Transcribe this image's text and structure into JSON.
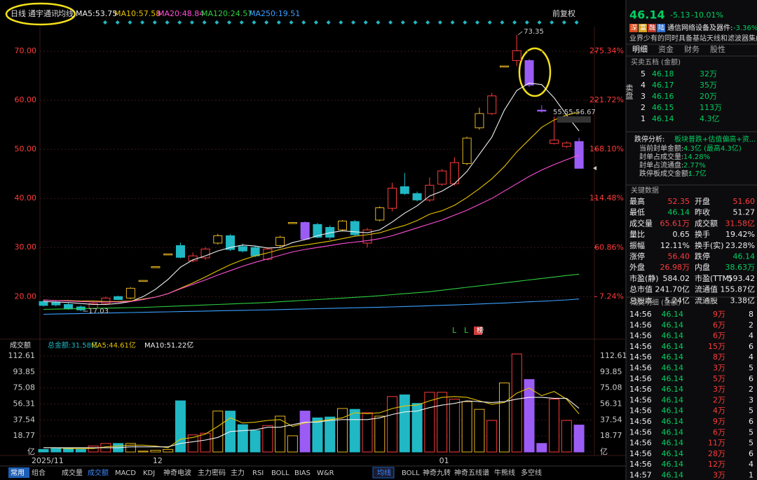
{
  "toolbar": {
    "period": "日线",
    "stock": "通宇通讯",
    "indicator": "均线",
    "adjust": "前复权"
  },
  "chart_data": [
    {
      "type": "candlestick",
      "categories": [
        "2025/11",
        null,
        null,
        null,
        null,
        null,
        null,
        null,
        null,
        "12",
        null,
        null,
        null,
        null,
        null,
        null,
        null,
        null,
        null,
        null,
        null,
        null,
        null,
        null,
        null,
        null,
        null,
        null,
        null,
        null,
        null,
        null,
        "01",
        null,
        null,
        null,
        null,
        null,
        null,
        null,
        null,
        null,
        null,
        null
      ],
      "open": [
        19.0,
        18.9,
        18.4,
        17.9,
        17.6,
        18.6,
        20.0,
        19.7,
        23.3,
        26.1,
        28.7,
        30.4,
        27.3,
        27.9,
        30.9,
        32.4,
        30.2,
        30.0,
        27.6,
        30.4,
        35.1,
        35.1,
        34.7,
        34.1,
        33.6,
        35.3,
        30.9,
        35.6,
        38.0,
        42.4,
        41.0,
        39.7,
        42.9,
        43.0,
        47.1,
        54.4,
        57.3,
        67.0,
        68.1,
        68.1,
        58.0,
        51.2,
        50.6,
        51.6
      ],
      "high": [
        19.3,
        19.1,
        18.7,
        18.2,
        18.9,
        20.0,
        20.2,
        21.9,
        23.3,
        26.1,
        28.7,
        31.0,
        29.0,
        30.1,
        32.8,
        32.7,
        30.8,
        30.3,
        30.0,
        32.4,
        35.1,
        35.3,
        35.0,
        34.5,
        35.6,
        35.6,
        34.0,
        38.4,
        43.2,
        45.2,
        41.4,
        44.3,
        46.0,
        48.4,
        52.6,
        58.5,
        61.5,
        67.0,
        73.35,
        68.4,
        59.0,
        56.67,
        51.6,
        52.35
      ],
      "low": [
        18.0,
        18.0,
        17.3,
        17.03,
        17.4,
        18.4,
        19.3,
        19.5,
        23.3,
        26.1,
        28.7,
        27.8,
        27.0,
        27.5,
        30.6,
        29.3,
        29.0,
        28.0,
        27.4,
        30.1,
        35.1,
        31.5,
        31.9,
        31.6,
        33.3,
        32.3,
        30.0,
        35.3,
        37.4,
        40.7,
        39.4,
        39.3,
        42.6,
        42.6,
        46.8,
        54.0,
        57.0,
        67.0,
        67.0,
        62.7,
        57.5,
        51.0,
        50.3,
        46.14
      ],
      "close": [
        18.2,
        18.3,
        17.5,
        17.3,
        18.6,
        19.7,
        19.4,
        21.7,
        23.3,
        26.1,
        28.7,
        28.0,
        28.3,
        29.7,
        32.4,
        29.6,
        29.3,
        28.3,
        29.7,
        32.1,
        35.1,
        31.7,
        32.1,
        32.1,
        35.4,
        32.6,
        33.6,
        38.1,
        42.1,
        41.0,
        39.7,
        42.7,
        45.6,
        47.3,
        52.3,
        57.3,
        60.9,
        67.0,
        70.1,
        63.1,
        57.8,
        51.9,
        51.3,
        46.14
      ],
      "candle_colors": [
        "#20b8c4",
        "#20b8c4",
        "#20b8c4",
        "#20b8c4",
        "#ff3b3b",
        "#ff3b3b",
        "#20b8c4",
        "#e6b422",
        "#e6b422",
        "#e6b422",
        "#e6b422",
        "#20b8c4",
        "#ff3b3b",
        "#ff3b3b",
        "#e6b422",
        "#20b8c4",
        "#20b8c4",
        "#20b8c4",
        "#ff3b3b",
        "#e6b422",
        "#e6b422",
        "#9b5cf6",
        "#20b8c4",
        "#20b8c4",
        "#e6b422",
        "#20b8c4",
        "#ff3b3b",
        "#e6b422",
        "#ff3b3b",
        "#20b8c4",
        "#20b8c4",
        "#ff3b3b",
        "#ff3b3b",
        "#ff3b3b",
        "#e6b422",
        "#e6b422",
        "#ff3b3b",
        "#e6b422",
        "#ff3b3b",
        "#9b5cf6",
        "#9b5cf6",
        "#ff3b3b",
        "#ff3b3b",
        "#9b5cf6"
      ],
      "series": [
        {
          "name": "MA5:53.75",
          "color": "#f0f0f0",
          "values": [
            19.0,
            18.9,
            18.8,
            18.6,
            18.4,
            18.4,
            18.6,
            19.0,
            20.0,
            21.5,
            23.5,
            26.0,
            27.5,
            28.3,
            29.3,
            30.0,
            30.5,
            30.3,
            29.9,
            30.0,
            31.0,
            31.6,
            32.4,
            33.0,
            33.4,
            33.2,
            33.0,
            33.6,
            35.2,
            37.0,
            38.5,
            40.5,
            41.5,
            43.0,
            45.5,
            49.0,
            52.5,
            58.0,
            62.0,
            63.5,
            63.2,
            60.5,
            57.0,
            53.75
          ]
        },
        {
          "name": "MA10:57.58",
          "color": "#e6c200",
          "values": [
            19.3,
            19.2,
            19.2,
            19.1,
            19.1,
            19.0,
            19.0,
            19.1,
            19.5,
            19.9,
            20.6,
            21.7,
            22.8,
            24.0,
            25.3,
            26.5,
            27.5,
            28.3,
            28.9,
            29.6,
            30.2,
            30.5,
            30.9,
            31.3,
            31.8,
            32.3,
            32.6,
            33.0,
            33.8,
            34.5,
            35.5,
            36.8,
            37.5,
            38.6,
            40.2,
            42.0,
            44.0,
            46.5,
            49.5,
            52.0,
            54.5,
            56.0,
            57.0,
            57.58
          ]
        },
        {
          "name": "MA20:48.84",
          "color": "#ff4fd8",
          "values": [
            19.3,
            19.2,
            19.1,
            19.0,
            18.9,
            18.9,
            18.9,
            19.0,
            19.4,
            19.9,
            20.6,
            21.6,
            22.5,
            23.4,
            24.4,
            25.3,
            26.2,
            27.0,
            27.7,
            28.4,
            29.1,
            29.6,
            30.0,
            30.4,
            30.8,
            31.1,
            31.4,
            31.8,
            32.4,
            33.2,
            34.0,
            34.8,
            35.6,
            36.6,
            37.6,
            38.8,
            40.0,
            41.5,
            43.0,
            44.5,
            45.8,
            46.9,
            47.9,
            48.84
          ]
        },
        {
          "name": "MA120:24.57",
          "color": "#2ecc40",
          "values": [
            17.4,
            17.45,
            17.5,
            17.55,
            17.6,
            17.65,
            17.7,
            17.75,
            17.8,
            17.9,
            18.0,
            18.1,
            18.2,
            18.3,
            18.4,
            18.5,
            18.6,
            18.7,
            18.8,
            18.95,
            19.1,
            19.25,
            19.4,
            19.55,
            19.7,
            19.85,
            20.0,
            20.2,
            20.4,
            20.6,
            20.8,
            21.0,
            21.3,
            21.6,
            21.9,
            22.2,
            22.5,
            22.8,
            23.1,
            23.4,
            23.7,
            24.0,
            24.3,
            24.57
          ]
        },
        {
          "name": "MA250:19.51",
          "color": "#3aa0ff",
          "values": [
            16.4,
            16.45,
            16.5,
            16.55,
            16.6,
            16.65,
            16.7,
            16.75,
            16.8,
            16.85,
            16.9,
            16.95,
            17.0,
            17.05,
            17.1,
            17.15,
            17.2,
            17.25,
            17.3,
            17.36,
            17.42,
            17.48,
            17.54,
            17.6,
            17.66,
            17.72,
            17.78,
            17.84,
            17.9,
            17.98,
            18.06,
            18.14,
            18.22,
            18.3,
            18.4,
            18.5,
            18.6,
            18.7,
            18.82,
            18.94,
            19.06,
            19.18,
            19.32,
            19.51
          ]
        }
      ],
      "ylim": [
        11.9,
        75.3
      ],
      "yticks": [
        {
          "value": 20,
          "label": "20.00"
        },
        {
          "value": 30,
          "label": "30.00"
        },
        {
          "value": 40,
          "label": "40.00"
        },
        {
          "value": 50,
          "label": "50.00"
        },
        {
          "value": 60,
          "label": "60.00"
        },
        {
          "value": 70,
          "label": "70.00"
        }
      ],
      "y2lim": [
        -36.2,
        303.8
      ],
      "y2ticks": [
        {
          "value": 7.24,
          "label": "7.24%"
        },
        {
          "value": 60.86,
          "label": "60.86%"
        },
        {
          "value": 114.48,
          "label": "114.48%"
        },
        {
          "value": 168.1,
          "label": "168.10%"
        },
        {
          "value": 221.72,
          "label": "221.72%"
        },
        {
          "value": 275.34,
          "label": "275.34%"
        }
      ],
      "grid": true,
      "annotations": {
        "high": "73.35",
        "low": "17.03",
        "range": "55.55-56.67",
        "marks": [
          "L",
          "L",
          "榜"
        ]
      }
    },
    {
      "type": "bar",
      "title": "成交额",
      "total": "总金额:31.58亿",
      "values": [
        3,
        4,
        4,
        3,
        7,
        10,
        10,
        10,
        1,
        2,
        3,
        60,
        20,
        22,
        48,
        48,
        32,
        25,
        31,
        42,
        19,
        48,
        40,
        41,
        51,
        50,
        46,
        42,
        65,
        67,
        57,
        70,
        70,
        62,
        59,
        50,
        37,
        81,
        115,
        85,
        10,
        62,
        37,
        31.58
      ],
      "colors": [
        "#20b8c4",
        "#20b8c4",
        "#20b8c4",
        "#20b8c4",
        "#ff3b3b",
        "#ff3b3b",
        "#20b8c4",
        "#e6b422",
        "#e6b422",
        "#e6b422",
        "#e6b422",
        "#20b8c4",
        "#ff3b3b",
        "#ff3b3b",
        "#e6b422",
        "#20b8c4",
        "#20b8c4",
        "#20b8c4",
        "#ff3b3b",
        "#e6b422",
        "#e6b422",
        "#9b5cf6",
        "#20b8c4",
        "#20b8c4",
        "#e6b422",
        "#20b8c4",
        "#ff3b3b",
        "#e6b422",
        "#ff3b3b",
        "#20b8c4",
        "#20b8c4",
        "#ff3b3b",
        "#ff3b3b",
        "#ff3b3b",
        "#e6b422",
        "#e6b422",
        "#ff3b3b",
        "#e6b422",
        "#ff3b3b",
        "#9b5cf6",
        "#9b5cf6",
        "#ff3b3b",
        "#ff3b3b",
        "#9b5cf6"
      ],
      "series": [
        {
          "name": "MA5:44.61亿",
          "color": "#e6c200",
          "values": [
            5,
            5,
            4,
            4,
            4,
            6,
            7,
            8,
            8,
            7,
            5,
            15,
            17,
            21,
            30,
            40,
            34,
            35,
            37,
            38,
            30,
            34,
            36,
            38,
            40,
            46,
            45,
            46,
            51,
            54,
            55,
            60,
            64,
            65,
            64,
            60,
            56,
            58,
            69,
            75,
            66,
            71,
            62,
            44.61
          ]
        },
        {
          "name": "MA10:51.22亿",
          "color": "#f0f0f0",
          "values": [
            5,
            5,
            5,
            5,
            5,
            5,
            5,
            6,
            6,
            6,
            6,
            10,
            12,
            14,
            17,
            24,
            25,
            26,
            29,
            29,
            32,
            35,
            35,
            37,
            38,
            38,
            38,
            40,
            44,
            47,
            48,
            52,
            55,
            57,
            60,
            59,
            58,
            59,
            62,
            64,
            64,
            63,
            63,
            51.22
          ]
        }
      ],
      "ylim": [
        0,
        112.61
      ],
      "yticks": [
        {
          "value": 0,
          "label": "亿"
        },
        18.77,
        37.54,
        56.31,
        75.08,
        93.85,
        112.61
      ]
    }
  ],
  "quote": {
    "price": "46.14",
    "change": "-5.13",
    "pct": "-10.01%",
    "badges": [
      "深",
      "富",
      "融",
      "陆"
    ],
    "sector": "通信网络设备及器件:",
    "sector_change": "-3.36%",
    "desc": "业界少有的同时具备基站天线和滤波器集成...",
    "tabs": [
      "明细",
      "资金",
      "财务",
      "股性"
    ]
  },
  "order_book": {
    "title": "买卖五档 (金额)",
    "side": "卖盘",
    "rows": [
      [
        "5",
        "46.18",
        "32万"
      ],
      [
        "4",
        "46.17",
        "35万"
      ],
      [
        "3",
        "46.16",
        "20万"
      ],
      [
        "2",
        "46.15",
        "113万"
      ],
      [
        "1",
        "46.14",
        "4.3亿"
      ]
    ]
  },
  "limit_analysis": {
    "title": "跌停分析:",
    "summary": "板块普跌+估值偏高+资...",
    "lines": [
      [
        "当前封单金额:",
        "4.3亿 (最高4.3亿)"
      ],
      [
        "封单占成交量:",
        "14.28%"
      ],
      [
        "封单占流通盘:",
        "2.77%"
      ],
      [
        "跌停板成交金额:",
        "1.7亿"
      ]
    ]
  },
  "key_data": {
    "title": "关键数据",
    "rows": [
      [
        "最高",
        "52.35",
        "开盘",
        "51.60"
      ],
      [
        "最低",
        "46.14",
        "昨收",
        "51.27"
      ],
      [
        "成交量",
        "65.61万",
        "成交额",
        "31.58亿"
      ],
      [
        "量比",
        "0.65",
        "换手",
        "19.42%"
      ],
      [
        "振幅",
        "12.11%",
        "换手(实)",
        "23.28%"
      ],
      [
        "涨停",
        "56.40",
        "跌停",
        "46.14"
      ],
      [
        "外盘",
        "26.98万",
        "内盘",
        "38.63万"
      ],
      [
        "市盈(静)",
        "584.02",
        "市盈(TTM)",
        "593.42"
      ],
      [
        "总市值",
        "241.70亿",
        "流通值",
        "155.87亿"
      ],
      [
        "总股本",
        "5.24亿",
        "流通股",
        "3.38亿"
      ]
    ],
    "colors": [
      [
        "#ff3b3b",
        "#ff3b3b"
      ],
      [
        "#00d060",
        "#eeeeee"
      ],
      [
        "#ff3b3b",
        "#ff3b3b"
      ],
      [
        "#eeeeee",
        "#eeeeee"
      ],
      [
        "#eeeeee",
        "#eeeeee"
      ],
      [
        "#ff3b3b",
        "#00d060"
      ],
      [
        "#ff3b3b",
        "#00d060"
      ],
      [
        "#eeeeee",
        "#eeeeee"
      ],
      [
        "#eeeeee",
        "#eeeeee"
      ],
      [
        "#eeeeee",
        "#eeeeee"
      ]
    ]
  },
  "trades": {
    "title": "成交明细 (金额)",
    "rows": [
      [
        "14:56",
        "46.14",
        "9万",
        "8"
      ],
      [
        "14:56",
        "46.14",
        "6万",
        "2"
      ],
      [
        "14:56",
        "46.14",
        "6万",
        "4"
      ],
      [
        "14:56",
        "46.14",
        "15万",
        "6"
      ],
      [
        "14:56",
        "46.14",
        "8万",
        "4"
      ],
      [
        "14:56",
        "46.14",
        "3万",
        "5"
      ],
      [
        "14:56",
        "46.14",
        "5万",
        "6"
      ],
      [
        "14:56",
        "46.14",
        "3万",
        "2"
      ],
      [
        "14:56",
        "46.14",
        "2万",
        "3"
      ],
      [
        "14:56",
        "46.14",
        "4万",
        "5"
      ],
      [
        "14:56",
        "46.14",
        "9万",
        "6"
      ],
      [
        "14:56",
        "46.14",
        "6万",
        "5"
      ],
      [
        "14:56",
        "46.14",
        "11万",
        "5"
      ],
      [
        "14:56",
        "46.14",
        "28万",
        "6"
      ],
      [
        "14:56",
        "46.14",
        "12万",
        "4"
      ],
      [
        "14:57",
        "46.14",
        "3万",
        "1"
      ]
    ]
  },
  "bottom_tabs": {
    "left": [
      "常用",
      "组合",
      "成交量",
      "成交额",
      "MACD",
      "KDJ",
      "神奇电波",
      "主力密码",
      "主力",
      "RSI",
      "BOLL",
      "BIAS",
      "W&R"
    ],
    "right": [
      "均线",
      "BOLL",
      "神奇九转",
      "神奇五线谱",
      "牛熊线",
      "多空线"
    ]
  }
}
